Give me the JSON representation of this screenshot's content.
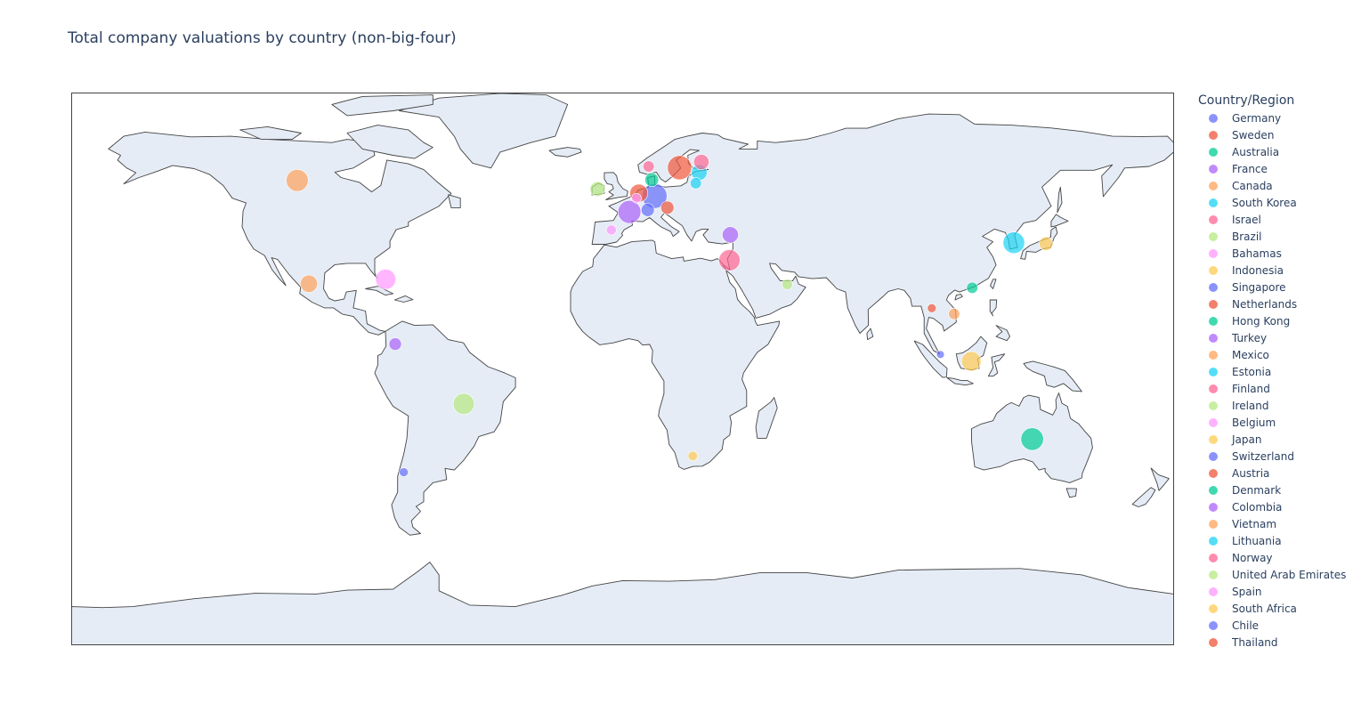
{
  "chart_data": {
    "type": "scatter_geo",
    "title": "Total company valuations by country (non-big-four)",
    "projection": "equirectangular",
    "land_color": "#e5ecf6",
    "coast_color": "#444444",
    "legend": {
      "title": "Country/Region",
      "placement": "right"
    },
    "series": [
      {
        "name": "Germany",
        "color": "#636efa",
        "lat": 51.2,
        "lon": 10.4,
        "size_rel": 1.0
      },
      {
        "name": "Sweden",
        "color": "#EF553B",
        "lat": 60.1,
        "lon": 18.6,
        "size_rel": 0.95
      },
      {
        "name": "Australia",
        "color": "#00cc96",
        "lat": -25.3,
        "lon": 133.8,
        "size_rel": 0.82
      },
      {
        "name": "France",
        "color": "#ab63fa",
        "lat": 46.2,
        "lon": 2.2,
        "size_rel": 0.85
      },
      {
        "name": "Canada",
        "color": "#FFA15A",
        "lat": 56.1,
        "lon": -106.3,
        "size_rel": 0.78
      },
      {
        "name": "South Korea",
        "color": "#19d3f3",
        "lat": 36.5,
        "lon": 127.8,
        "size_rel": 0.75
      },
      {
        "name": "Israel",
        "color": "#FF6692",
        "lat": 31.0,
        "lon": 34.9,
        "size_rel": 0.72
      },
      {
        "name": "Brazil",
        "color": "#B6E880",
        "lat": -14.2,
        "lon": -51.9,
        "size_rel": 0.72
      },
      {
        "name": "Bahamas",
        "color": "#FF97FF",
        "lat": 25.0,
        "lon": -77.4,
        "size_rel": 0.65
      },
      {
        "name": "Indonesia",
        "color": "#FECB52",
        "lat": -0.8,
        "lon": 113.9,
        "size_rel": 0.62
      },
      {
        "name": "Singapore",
        "color": "#636efa",
        "lat": 1.35,
        "lon": 103.8,
        "size_rel": 0.1
      },
      {
        "name": "Netherlands",
        "color": "#EF553B",
        "lat": 52.1,
        "lon": 5.3,
        "size_rel": 0.52
      },
      {
        "name": "Hong Kong",
        "color": "#00cc96",
        "lat": 22.3,
        "lon": 114.2,
        "size_rel": 0.2
      },
      {
        "name": "Turkey",
        "color": "#ab63fa",
        "lat": 39.0,
        "lon": 35.2,
        "size_rel": 0.42
      },
      {
        "name": "Mexico",
        "color": "#FFA15A",
        "lat": 23.6,
        "lon": -102.5,
        "size_rel": 0.48
      },
      {
        "name": "Estonia",
        "color": "#19d3f3",
        "lat": 58.6,
        "lon": 25.0,
        "size_rel": 0.4
      },
      {
        "name": "Finland",
        "color": "#FF6692",
        "lat": 61.9,
        "lon": 25.7,
        "size_rel": 0.38
      },
      {
        "name": "Ireland",
        "color": "#B6E880",
        "lat": 53.4,
        "lon": -8.2,
        "size_rel": 0.35
      },
      {
        "name": "Belgium",
        "color": "#FF97FF",
        "lat": 50.5,
        "lon": 4.5,
        "size_rel": 0.15
      },
      {
        "name": "Japan",
        "color": "#FECB52",
        "lat": 36.2,
        "lon": 138.3,
        "size_rel": 0.3
      },
      {
        "name": "Switzerland",
        "color": "#636efa",
        "lat": 46.8,
        "lon": 8.2,
        "size_rel": 0.28
      },
      {
        "name": "Austria",
        "color": "#EF553B",
        "lat": 47.5,
        "lon": 14.6,
        "size_rel": 0.28
      },
      {
        "name": "Denmark",
        "color": "#00cc96",
        "lat": 56.3,
        "lon": 9.5,
        "size_rel": 0.3
      },
      {
        "name": "Colombia",
        "color": "#ab63fa",
        "lat": 4.6,
        "lon": -74.3,
        "size_rel": 0.25
      },
      {
        "name": "Vietnam",
        "color": "#FFA15A",
        "lat": 14.1,
        "lon": 108.3,
        "size_rel": 0.2
      },
      {
        "name": "Lithuania",
        "color": "#19d3f3",
        "lat": 55.2,
        "lon": 23.9,
        "size_rel": 0.2
      },
      {
        "name": "Norway",
        "color": "#FF6692",
        "lat": 60.5,
        "lon": 8.5,
        "size_rel": 0.2
      },
      {
        "name": "United Arab Emirates",
        "color": "#B6E880",
        "lat": 23.4,
        "lon": 53.8,
        "size_rel": 0.18
      },
      {
        "name": "Spain",
        "color": "#FF97FF",
        "lat": 40.5,
        "lon": -3.7,
        "size_rel": 0.16
      },
      {
        "name": "South Africa",
        "color": "#FECB52",
        "lat": -30.6,
        "lon": 22.9,
        "size_rel": 0.15
      },
      {
        "name": "Chile",
        "color": "#636efa",
        "lat": -35.7,
        "lon": -71.5,
        "size_rel": 0.13
      },
      {
        "name": "Thailand",
        "color": "#EF553B",
        "lat": 15.9,
        "lon": 101.0,
        "size_rel": 0.13
      }
    ]
  }
}
